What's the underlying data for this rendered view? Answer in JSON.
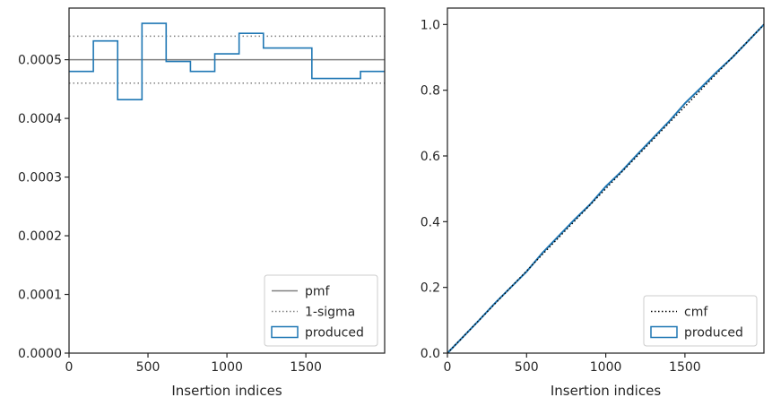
{
  "chart_data": [
    {
      "type": "line",
      "xlabel": "Insertion indices",
      "ylabel": "",
      "xlim": [
        0,
        1999
      ],
      "ylim": [
        0,
        0.000588
      ],
      "x_ticks": [
        0,
        500,
        1000,
        1500
      ],
      "y_ticks": [
        0,
        0.0001,
        0.0002,
        0.0003,
        0.0004,
        0.0005
      ],
      "y_tick_labels": [
        "0.0000",
        "0.0001",
        "0.0002",
        "0.0003",
        "0.0004",
        "0.0005"
      ],
      "pmf": 0.0005,
      "sigma_upper": 0.00054,
      "sigma_lower": 0.00046,
      "histogram": {
        "edges": [
          0,
          154,
          308,
          462,
          615,
          769,
          923,
          1077,
          1231,
          1385,
          1538,
          1692,
          1846,
          1999
        ],
        "values": [
          0.00048,
          0.000532,
          0.000432,
          0.000562,
          0.000497,
          0.00048,
          0.00051,
          0.000545,
          0.00052,
          0.00052,
          0.000468,
          0.000468,
          0.00048
        ]
      },
      "legend": {
        "position": "lower-right",
        "entries": [
          {
            "label": "pmf",
            "style": "solid",
            "color": "#808080"
          },
          {
            "label": "1-sigma",
            "style": "dotted",
            "color": "#808080"
          },
          {
            "label": "produced",
            "style": "step-box",
            "color": "#1f77b4"
          }
        ]
      }
    },
    {
      "type": "line",
      "xlabel": "Insertion indices",
      "ylabel": "",
      "xlim": [
        0,
        1999
      ],
      "ylim": [
        0,
        1.05
      ],
      "x_ticks": [
        0,
        500,
        1000,
        1500
      ],
      "y_ticks": [
        0,
        0.2,
        0.4,
        0.6,
        0.8,
        1.0
      ],
      "y_tick_labels": [
        "0.0",
        "0.2",
        "0.4",
        "0.6",
        "0.8",
        "1.0"
      ],
      "cmf": {
        "x": [
          0,
          1999
        ],
        "y": [
          0,
          1.0
        ]
      },
      "produced": {
        "x": [
          0,
          100,
          200,
          300,
          400,
          500,
          600,
          700,
          800,
          900,
          1000,
          1100,
          1200,
          1300,
          1400,
          1500,
          1600,
          1700,
          1800,
          1900,
          1999
        ],
        "y": [
          0,
          0.05,
          0.1,
          0.152,
          0.2,
          0.248,
          0.305,
          0.355,
          0.405,
          0.452,
          0.507,
          0.553,
          0.605,
          0.655,
          0.705,
          0.76,
          0.807,
          0.855,
          0.9,
          0.95,
          1.0
        ]
      },
      "legend": {
        "position": "lower-right",
        "entries": [
          {
            "label": "cmf",
            "style": "dotted",
            "color": "#000000"
          },
          {
            "label": "produced",
            "style": "step-box",
            "color": "#1f77b4"
          }
        ]
      }
    }
  ]
}
